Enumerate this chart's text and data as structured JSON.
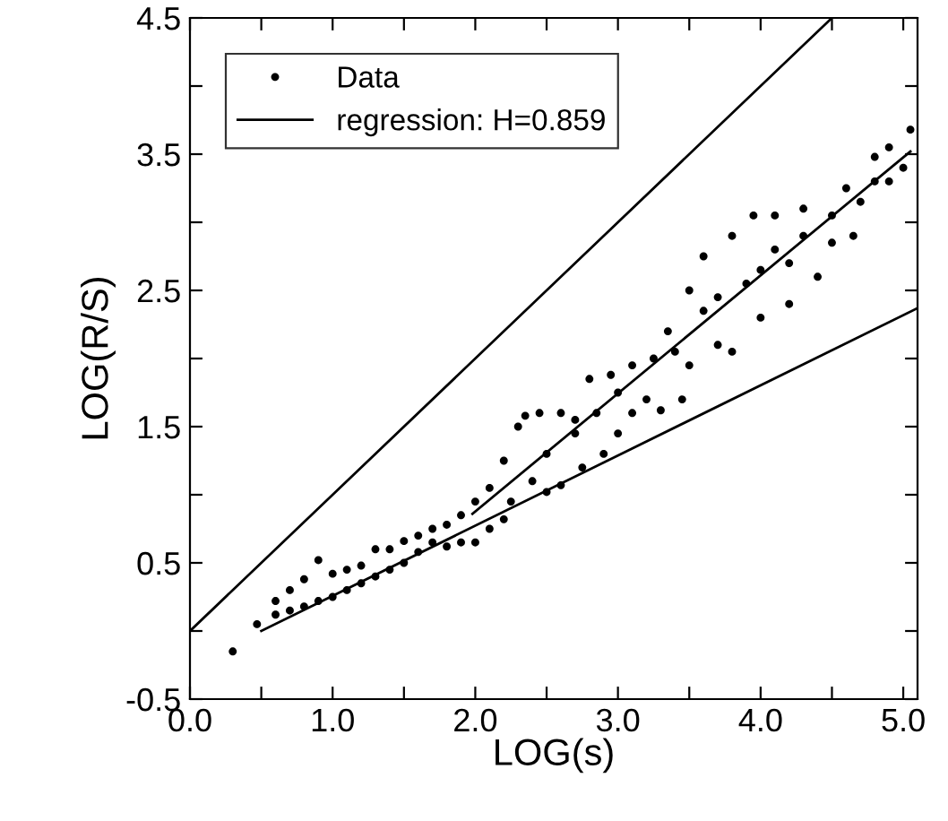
{
  "chart_data": {
    "type": "scatter",
    "xlabel": "LOG(s)",
    "ylabel": "LOG(R/S)",
    "xlim": [
      0,
      5.1
    ],
    "ylim": [
      -0.5,
      4.5
    ],
    "xticks": [
      {
        "value": 0,
        "label": "0.0"
      },
      {
        "value": 0.5,
        "label": null
      },
      {
        "value": 1,
        "label": "1.0"
      },
      {
        "value": 1.5,
        "label": null
      },
      {
        "value": 2,
        "label": "2.0"
      },
      {
        "value": 2.5,
        "label": null
      },
      {
        "value": 3,
        "label": "3.0"
      },
      {
        "value": 3.5,
        "label": null
      },
      {
        "value": 4,
        "label": "4.0"
      },
      {
        "value": 4.5,
        "label": null
      },
      {
        "value": 5,
        "label": "5.0"
      }
    ],
    "yticks": [
      -0.5,
      {
        "value": 0,
        "label": null
      },
      0.5,
      {
        "value": 1,
        "label": null
      },
      1.5,
      {
        "value": 2,
        "label": null
      },
      2.5,
      {
        "value": 3,
        "label": null
      },
      3.5,
      {
        "value": 4,
        "label": null
      },
      4.5
    ],
    "grid": false,
    "legend": "top left",
    "series": [
      {
        "name": "Data",
        "marker": "circle",
        "color": "#000000",
        "x": [
          0.3,
          0.47,
          0.6,
          0.6,
          0.7,
          0.7,
          0.8,
          0.8,
          0.9,
          0.9,
          1.0,
          1.0,
          1.1,
          1.1,
          1.2,
          1.2,
          1.3,
          1.3,
          1.4,
          1.4,
          1.5,
          1.5,
          1.6,
          1.6,
          1.7,
          1.7,
          1.8,
          1.8,
          1.9,
          1.9,
          2.0,
          2.0,
          2.1,
          2.1,
          2.2,
          2.2,
          2.25,
          2.3,
          2.35,
          2.4,
          2.45,
          2.5,
          2.5,
          2.6,
          2.6,
          2.7,
          2.7,
          2.75,
          2.8,
          2.85,
          2.9,
          2.95,
          3.0,
          3.0,
          3.1,
          3.1,
          3.2,
          3.25,
          3.3,
          3.35,
          3.4,
          3.45,
          3.5,
          3.5,
          3.6,
          3.6,
          3.7,
          3.7,
          3.8,
          3.8,
          3.9,
          3.95,
          4.0,
          4.0,
          4.1,
          4.1,
          4.2,
          4.2,
          4.3,
          4.3,
          4.4,
          4.5,
          4.5,
          4.6,
          4.65,
          4.7,
          4.8,
          4.8,
          4.9,
          4.9,
          5.0,
          5.05
        ],
        "values": [
          -0.15,
          0.05,
          0.12,
          0.22,
          0.15,
          0.3,
          0.18,
          0.38,
          0.22,
          0.52,
          0.25,
          0.42,
          0.3,
          0.45,
          0.35,
          0.48,
          0.4,
          0.6,
          0.45,
          0.6,
          0.5,
          0.66,
          0.58,
          0.7,
          0.65,
          0.75,
          0.62,
          0.78,
          0.65,
          0.85,
          0.65,
          0.95,
          0.75,
          1.05,
          0.82,
          1.25,
          0.95,
          1.5,
          1.58,
          1.1,
          1.6,
          1.02,
          1.3,
          1.6,
          1.07,
          1.55,
          1.45,
          1.2,
          1.85,
          1.6,
          1.3,
          1.88,
          1.45,
          1.75,
          1.95,
          1.6,
          1.7,
          2.0,
          1.62,
          2.2,
          2.05,
          1.7,
          2.5,
          1.95,
          2.35,
          2.75,
          2.1,
          2.45,
          2.9,
          2.05,
          2.55,
          3.05,
          2.3,
          2.65,
          2.8,
          3.05,
          2.4,
          2.7,
          3.1,
          2.9,
          2.6,
          3.05,
          2.85,
          3.25,
          2.9,
          3.15,
          3.3,
          3.48,
          3.3,
          3.55,
          3.4,
          3.68
        ]
      },
      {
        "name": "regression: H=0.859",
        "type": "line",
        "color": "#000000",
        "line_style": "solid",
        "x": [
          1.98,
          5.05
        ],
        "values": [
          0.86,
          3.52
        ]
      },
      {
        "type": "line",
        "color": "#000000",
        "line_style": "solid",
        "x": [
          0,
          4.5
        ],
        "values": [
          0,
          4.5
        ]
      },
      {
        "type": "line",
        "color": "#000000",
        "line_style": "solid",
        "x": [
          0.5,
          5.1
        ],
        "values": [
          0,
          2.37
        ]
      }
    ]
  }
}
